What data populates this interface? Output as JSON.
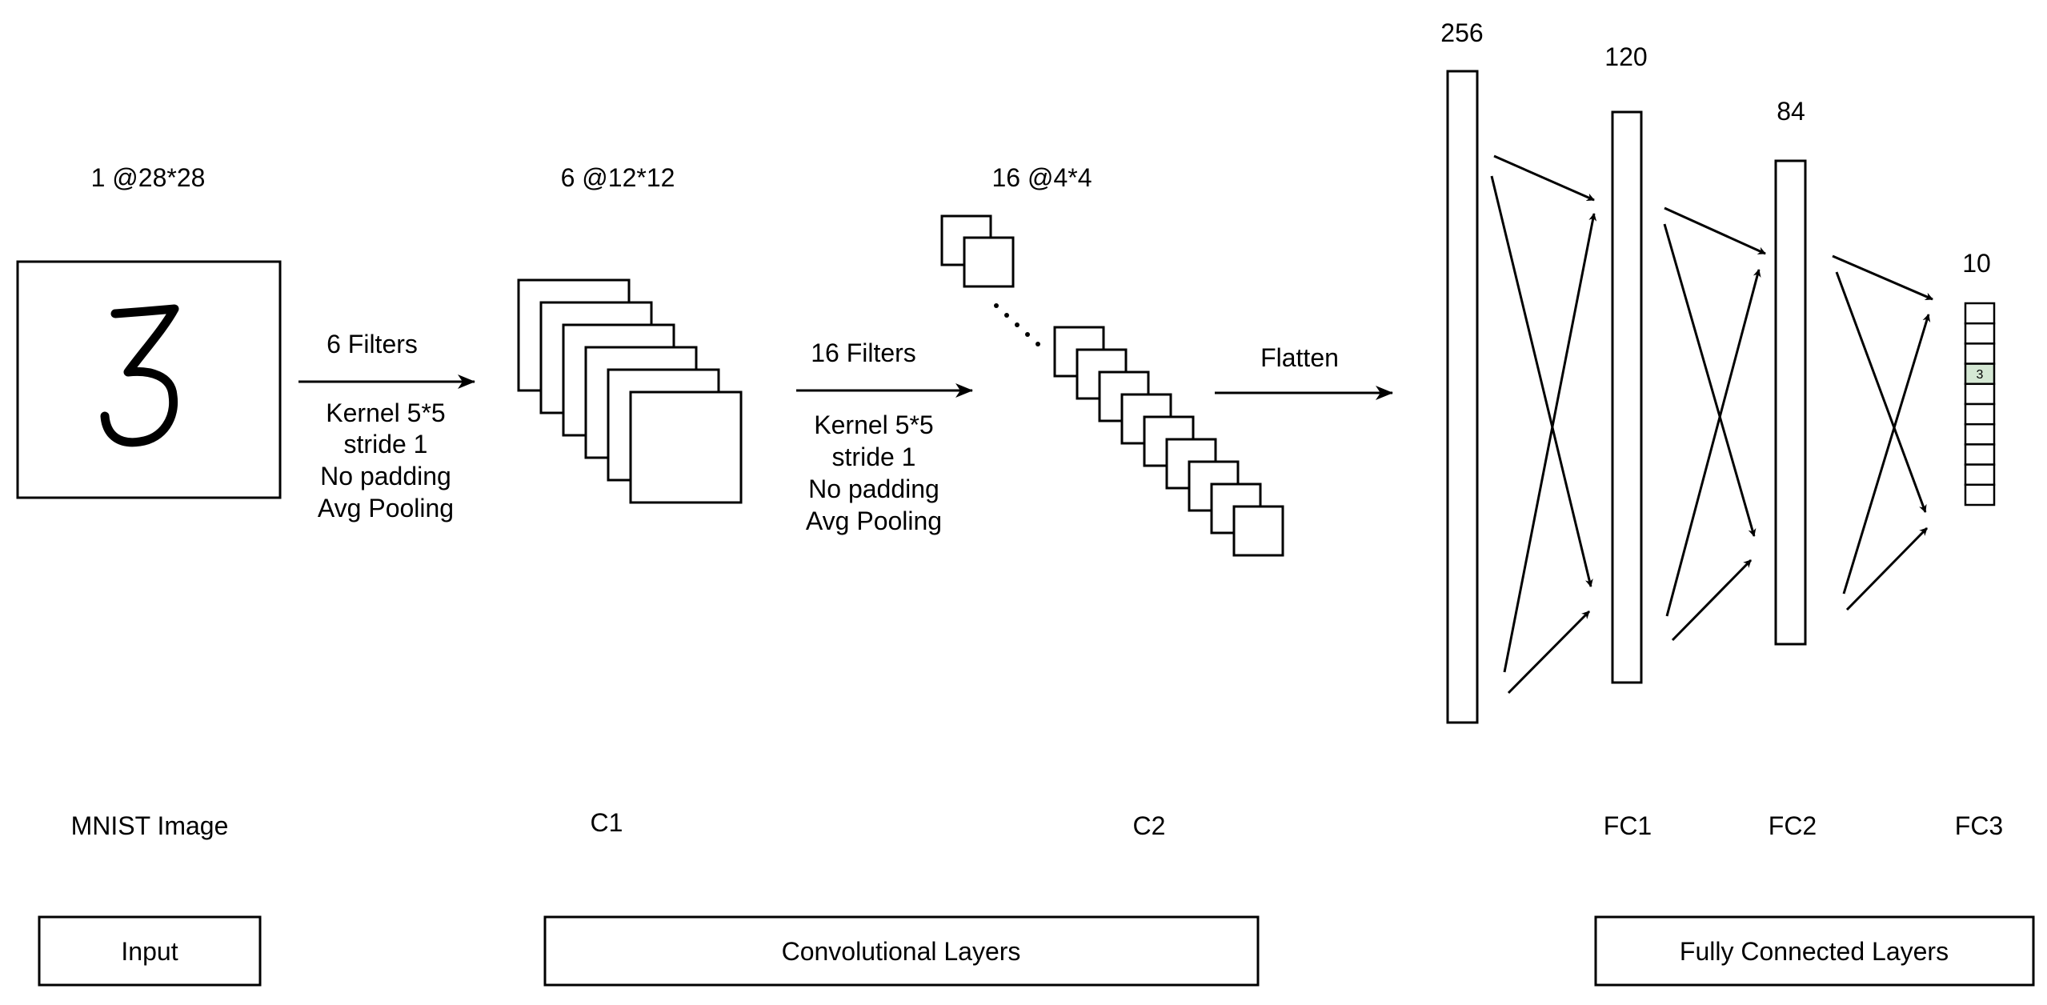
{
  "input": {
    "dims_label": "1 @28*28",
    "image_caption": "MNIST Image"
  },
  "op1": {
    "filters": "6 Filters",
    "lines": [
      "Kernel 5*5",
      "stride 1",
      "No padding",
      "Avg Pooling"
    ]
  },
  "c1": {
    "dims_label": "6 @12*12",
    "caption": "C1",
    "feature_map_count": 6
  },
  "op2": {
    "filters": "16 Filters",
    "lines": [
      "Kernel 5*5",
      "stride 1",
      "No padding",
      "Avg Pooling"
    ]
  },
  "c2": {
    "dims_label": "16 @4*4",
    "caption": "C2"
  },
  "flatten_label": "Flatten",
  "fc": {
    "flat_size": "256",
    "fc1_size": "120",
    "fc2_size": "84",
    "fc3_size": "10",
    "fc1_caption": "FC1",
    "fc2_caption": "FC2",
    "fc3_caption": "FC3",
    "output_cells": 10,
    "highlighted_index": 3,
    "highlighted_label": "3",
    "highlight_color": "#d5e8d4"
  },
  "groups": {
    "input": "Input",
    "conv": "Convolutional Layers",
    "fc": "Fully Connected Layers"
  }
}
